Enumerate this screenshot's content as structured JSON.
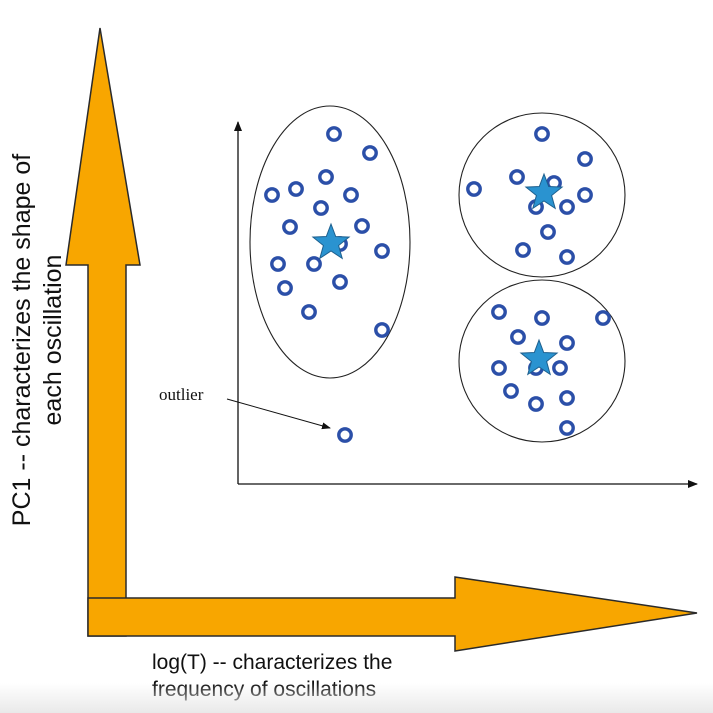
{
  "axes": {
    "y_label_lines": [
      "PC1 -- characterizes the shape of",
      "each oscillation"
    ],
    "x_label_lines": [
      "log(T) -- characterizes the",
      "frequency of oscillations"
    ]
  },
  "annotations": {
    "outlier": "outlier"
  },
  "colors": {
    "big_arrow_fill": "#f8a600",
    "big_arrow_stroke": "#2a2a2a",
    "point_stroke": "#2b4fa8",
    "point_fill": "#ffffff",
    "centroid_fill": "#2a93d0",
    "centroid_stroke": "#1d5f8e",
    "cluster_outline": "#222222"
  },
  "icons": {
    "point": "ring-marker-icon",
    "centroid": "star-icon"
  },
  "scatter": {
    "clusters": [
      {
        "name_key": "cluster-left",
        "points": [
          [
            334,
            134
          ],
          [
            370,
            153
          ],
          [
            272,
            195
          ],
          [
            296,
            189
          ],
          [
            326,
            177
          ],
          [
            351,
            195
          ],
          [
            321,
            208
          ],
          [
            290,
            227
          ],
          [
            362,
            226
          ],
          [
            340,
            244
          ],
          [
            382,
            251
          ],
          [
            278,
            264
          ],
          [
            314,
            264
          ],
          [
            340,
            282
          ],
          [
            285,
            288
          ],
          [
            309,
            312
          ],
          [
            382,
            330
          ]
        ],
        "centroid": [
          331,
          243
        ]
      },
      {
        "name_key": "cluster-top-right",
        "points": [
          [
            542,
            134
          ],
          [
            585,
            159
          ],
          [
            474,
            189
          ],
          [
            517,
            177
          ],
          [
            554,
            183
          ],
          [
            585,
            195
          ],
          [
            536,
            207
          ],
          [
            567,
            207
          ],
          [
            548,
            232
          ],
          [
            523,
            250
          ],
          [
            567,
            257
          ]
        ],
        "centroid": [
          544,
          193
        ]
      },
      {
        "name_key": "cluster-bottom-right",
        "points": [
          [
            499,
            312
          ],
          [
            542,
            318
          ],
          [
            603,
            318
          ],
          [
            518,
            337
          ],
          [
            567,
            343
          ],
          [
            499,
            368
          ],
          [
            536,
            368
          ],
          [
            560,
            368
          ],
          [
            511,
            391
          ],
          [
            536,
            404
          ],
          [
            567,
            398
          ],
          [
            567,
            428
          ]
        ],
        "centroid": [
          539,
          359
        ]
      }
    ],
    "outlier_point": [
      345,
      435
    ]
  }
}
